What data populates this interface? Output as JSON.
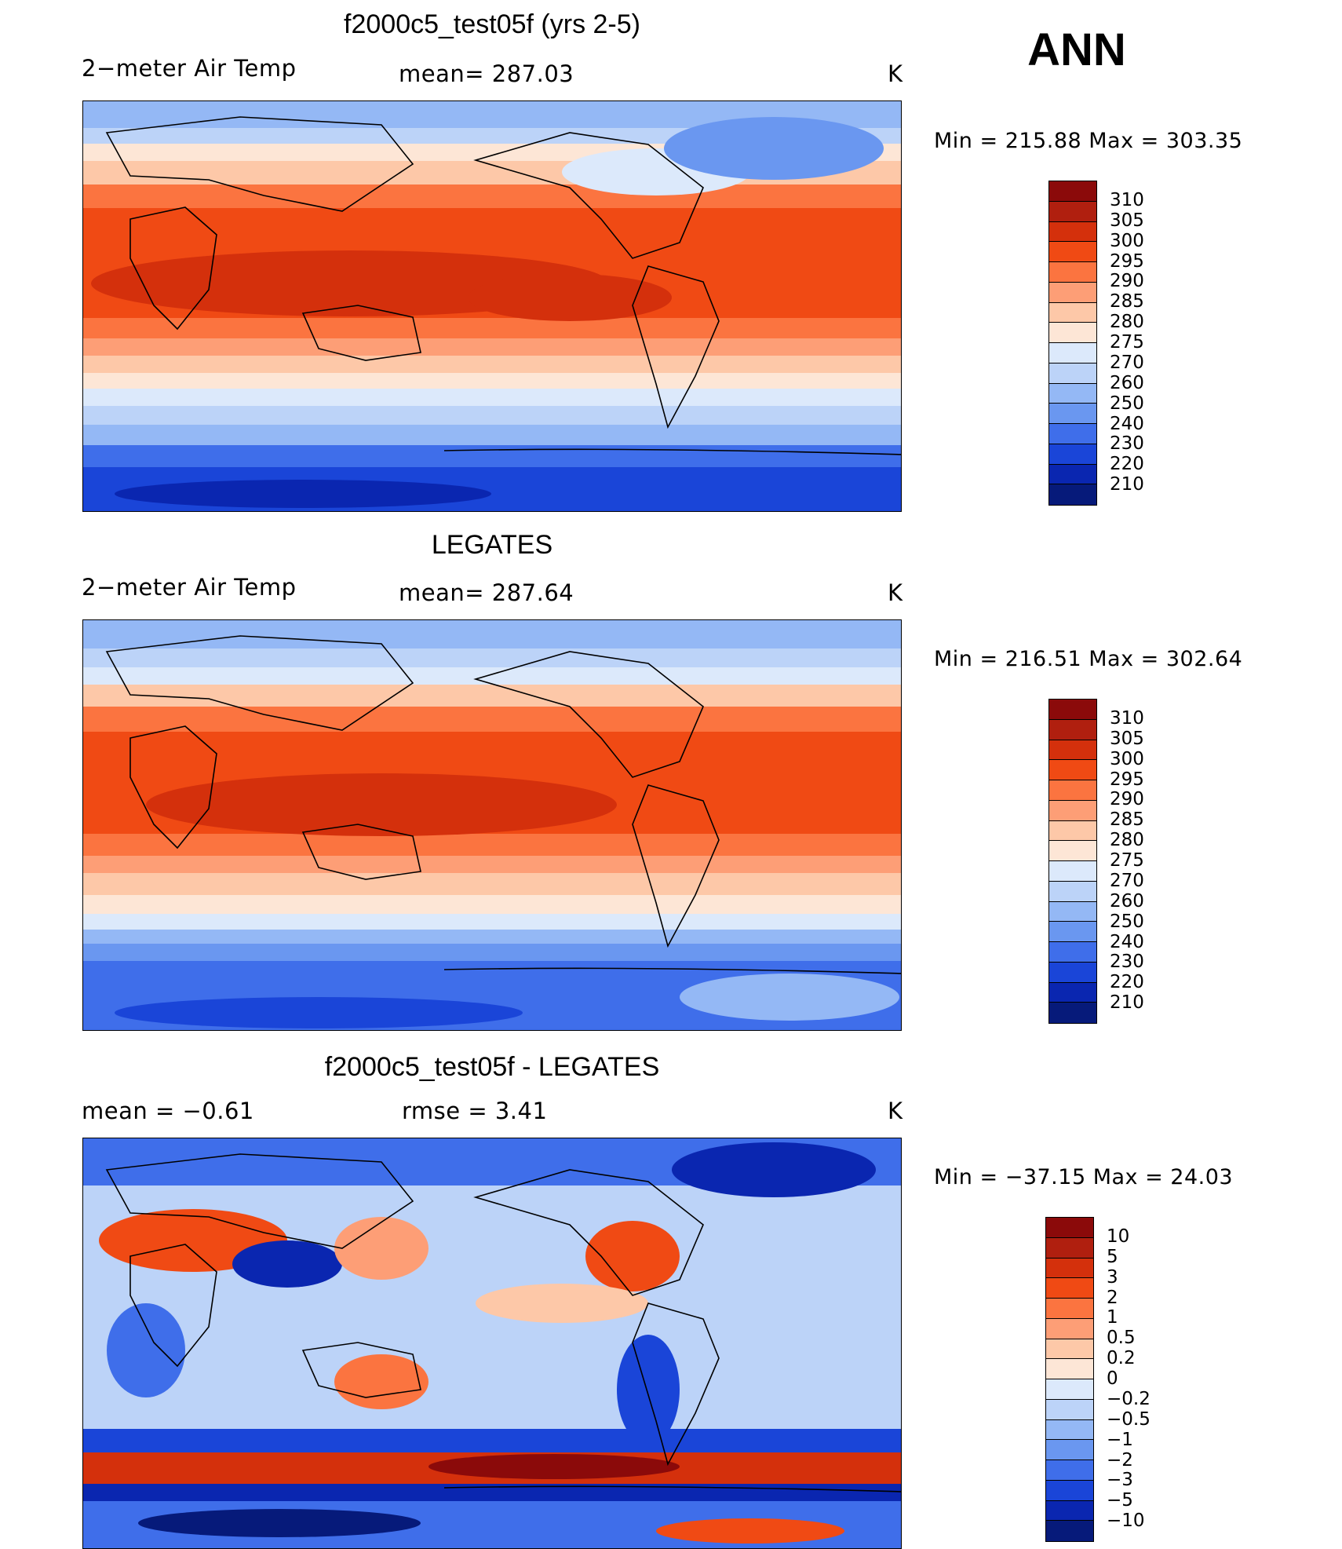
{
  "season": "ANN",
  "panels": [
    {
      "title": "f2000c5_test05f (yrs 2-5)",
      "left_label": "2−meter Air Temp",
      "center_label": "mean=  287.03",
      "right_label": "K",
      "minmax": "Min  =  215.88  Max  =  303.35",
      "colorbar": {
        "labels": [
          "310",
          "305",
          "300",
          "295",
          "290",
          "285",
          "280",
          "275",
          "270",
          "260",
          "250",
          "240",
          "230",
          "220",
          "210"
        ],
        "colors": [
          "#8b0a0a",
          "#b01f0f",
          "#d4300c",
          "#f04a14",
          "#fb7440",
          "#fd9e76",
          "#fdc8a8",
          "#fde6d6",
          "#dce9fb",
          "#bcd3f8",
          "#94b8f5",
          "#6a97f0",
          "#3f6eea",
          "#1a45d8",
          "#0a26b0",
          "#061a7a"
        ]
      }
    },
    {
      "title": "LEGATES",
      "left_label": "2−meter Air Temp",
      "center_label": "mean=  287.64",
      "right_label": "K",
      "minmax": "Min  =  216.51  Max  =  302.64",
      "colorbar": {
        "labels": [
          "310",
          "305",
          "300",
          "295",
          "290",
          "285",
          "280",
          "275",
          "270",
          "260",
          "250",
          "240",
          "230",
          "220",
          "210"
        ],
        "colors": [
          "#8b0a0a",
          "#b01f0f",
          "#d4300c",
          "#f04a14",
          "#fb7440",
          "#fd9e76",
          "#fdc8a8",
          "#fde6d6",
          "#dce9fb",
          "#bcd3f8",
          "#94b8f5",
          "#6a97f0",
          "#3f6eea",
          "#1a45d8",
          "#0a26b0",
          "#061a7a"
        ]
      }
    },
    {
      "title": "f2000c5_test05f - LEGATES",
      "left_label": "mean  =    −0.61",
      "center_label": "rmse  =     3.41",
      "right_label": "K",
      "minmax": "Min  =  −37.15  Max  =    24.03",
      "colorbar": {
        "labels": [
          "10",
          "5",
          "3",
          "2",
          "1",
          "0.5",
          "0.2",
          "0",
          "−0.2",
          "−0.5",
          "−1",
          "−2",
          "−3",
          "−5",
          "−10"
        ],
        "colors": [
          "#8b0a0a",
          "#b01f0f",
          "#d4300c",
          "#f04a14",
          "#fb7440",
          "#fd9e76",
          "#fdc8a8",
          "#fde6d6",
          "#dce9fb",
          "#bcd3f8",
          "#94b8f5",
          "#6a97f0",
          "#3f6eea",
          "#1a45d8",
          "#0a26b0",
          "#061a7a"
        ]
      }
    }
  ]
}
